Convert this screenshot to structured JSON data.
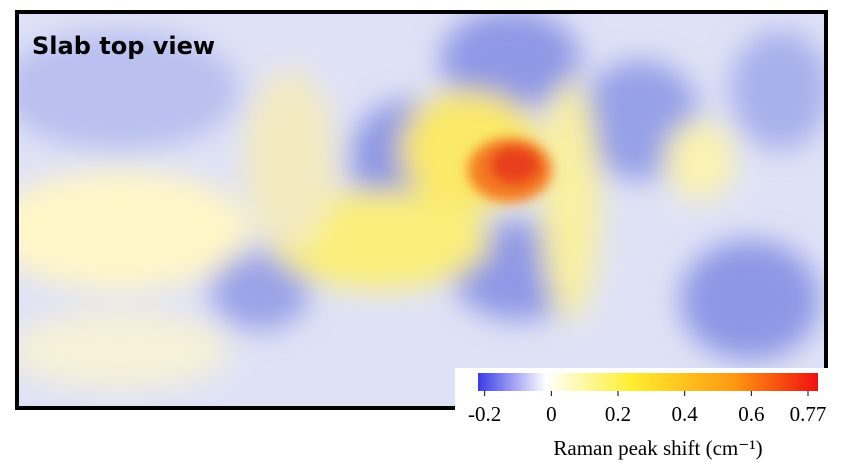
{
  "image": {
    "label": "Slab top view"
  },
  "colorbar": {
    "label": "Raman peak shift (cm⁻¹)",
    "lim": [
      -0.22,
      0.8
    ],
    "ticks": [
      -0.2,
      0,
      0.2,
      0.4,
      0.6,
      0.77
    ]
  }
}
